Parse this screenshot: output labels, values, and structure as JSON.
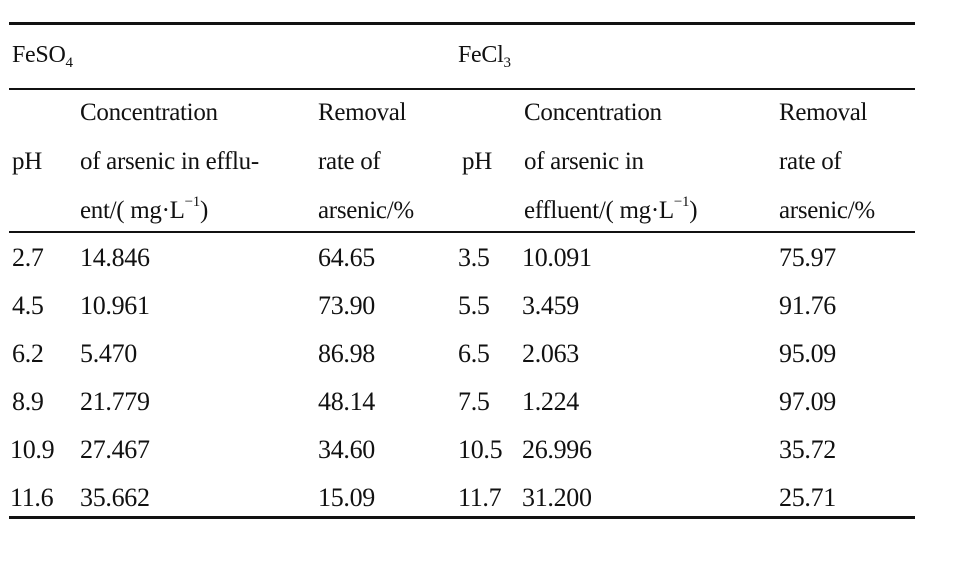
{
  "table": {
    "groups": [
      {
        "name": "FeSO",
        "sub": "4"
      },
      {
        "name": "FeCl",
        "sub": "3"
      }
    ],
    "headers": {
      "ph": "pH",
      "conc_feso4": [
        "Concentration",
        "of arsenic in efflu-",
        "ent/( mg·L",
        ")"
      ],
      "conc_fecl3": [
        "Concentration",
        "of arsenic in",
        "effluent/( mg·L",
        ")"
      ],
      "conc_unit_sup": "−1",
      "removal": [
        "Removal",
        "rate of",
        "arsenic/%"
      ]
    },
    "rows": [
      {
        "ph1": "2.7",
        "c1": "14.846",
        "r1": "64.65",
        "ph2": "3.5",
        "c2": "10.091",
        "r2": "75.97"
      },
      {
        "ph1": "4.5",
        "c1": "10.961",
        "r1": "73.90",
        "ph2": "5.5",
        "c2": "3.459",
        "r2": "91.76"
      },
      {
        "ph1": "6.2",
        "c1": "5.470",
        "r1": "86.98",
        "ph2": "6.5",
        "c2": "2.063",
        "r2": "95.09"
      },
      {
        "ph1": "8.9",
        "c1": "21.779",
        "r1": "48.14",
        "ph2": "7.5",
        "c2": "1.224",
        "r2": "97.09"
      },
      {
        "ph1": "10.9",
        "c1": "27.467",
        "r1": "34.60",
        "ph2": "10.5",
        "c2": "26.996",
        "r2": "35.72"
      },
      {
        "ph1": "11.6",
        "c1": "35.662",
        "r1": "15.09",
        "ph2": "11.7",
        "c2": "31.200",
        "r2": "25.71"
      }
    ]
  }
}
